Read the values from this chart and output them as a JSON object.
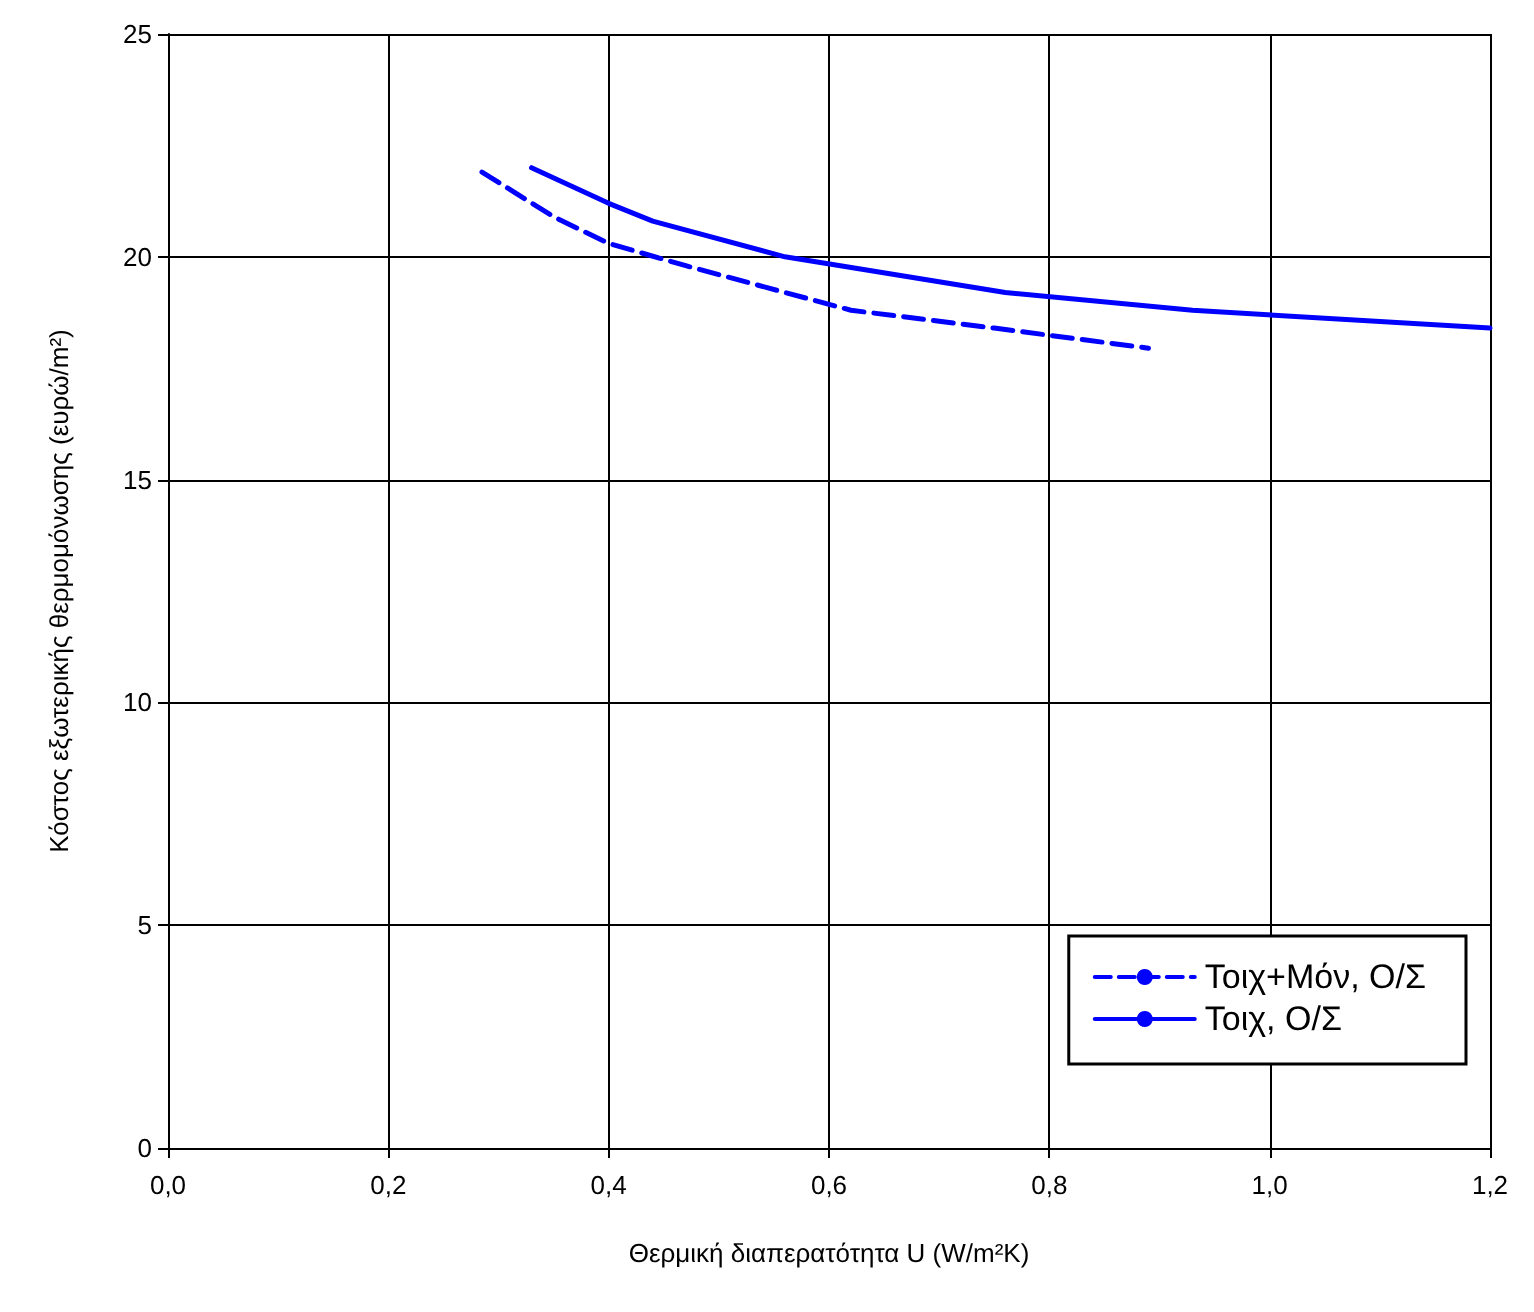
{
  "chart_data": {
    "type": "line",
    "xlabel": "Θερμική διαπερατότητα U (W/m²K)",
    "ylabel": "Κόστος εξωτερικής θερμομόνωσης (ευρώ/m²)",
    "series": [
      {
        "name": "Τοιχ+Μόν, Ο/Σ",
        "color": "#0000ff",
        "line_style": "dashed",
        "x": [
          0.285,
          0.35,
          0.4,
          0.47,
          0.62,
          0.75,
          0.89
        ],
        "values": [
          21.9,
          20.9,
          20.3,
          19.8,
          18.8,
          18.4,
          17.95
        ]
      },
      {
        "name": "Τοιχ, Ο/Σ",
        "color": "#0000ff",
        "line_style": "solid",
        "x": [
          0.33,
          0.4,
          0.44,
          0.56,
          0.76,
          0.93,
          1.2
        ],
        "values": [
          22.0,
          21.2,
          20.8,
          20.0,
          19.2,
          18.8,
          18.4
        ]
      }
    ],
    "xlim": [
      0,
      1.2
    ],
    "xticks": [
      {
        "value": 0,
        "label": "0,0"
      },
      {
        "value": 0.2,
        "label": "0,2"
      },
      {
        "value": 0.4,
        "label": "0,4"
      },
      {
        "value": 0.6,
        "label": "0,6"
      },
      {
        "value": 0.8,
        "label": "0,8"
      },
      {
        "value": 1.0,
        "label": "1,0"
      },
      {
        "value": 1.2,
        "label": "1,2"
      }
    ],
    "ylim": [
      0,
      25
    ],
    "yticks": [
      0,
      5,
      10,
      15,
      20,
      25
    ],
    "grid": true,
    "legend": "right",
    "marker": "none"
  }
}
